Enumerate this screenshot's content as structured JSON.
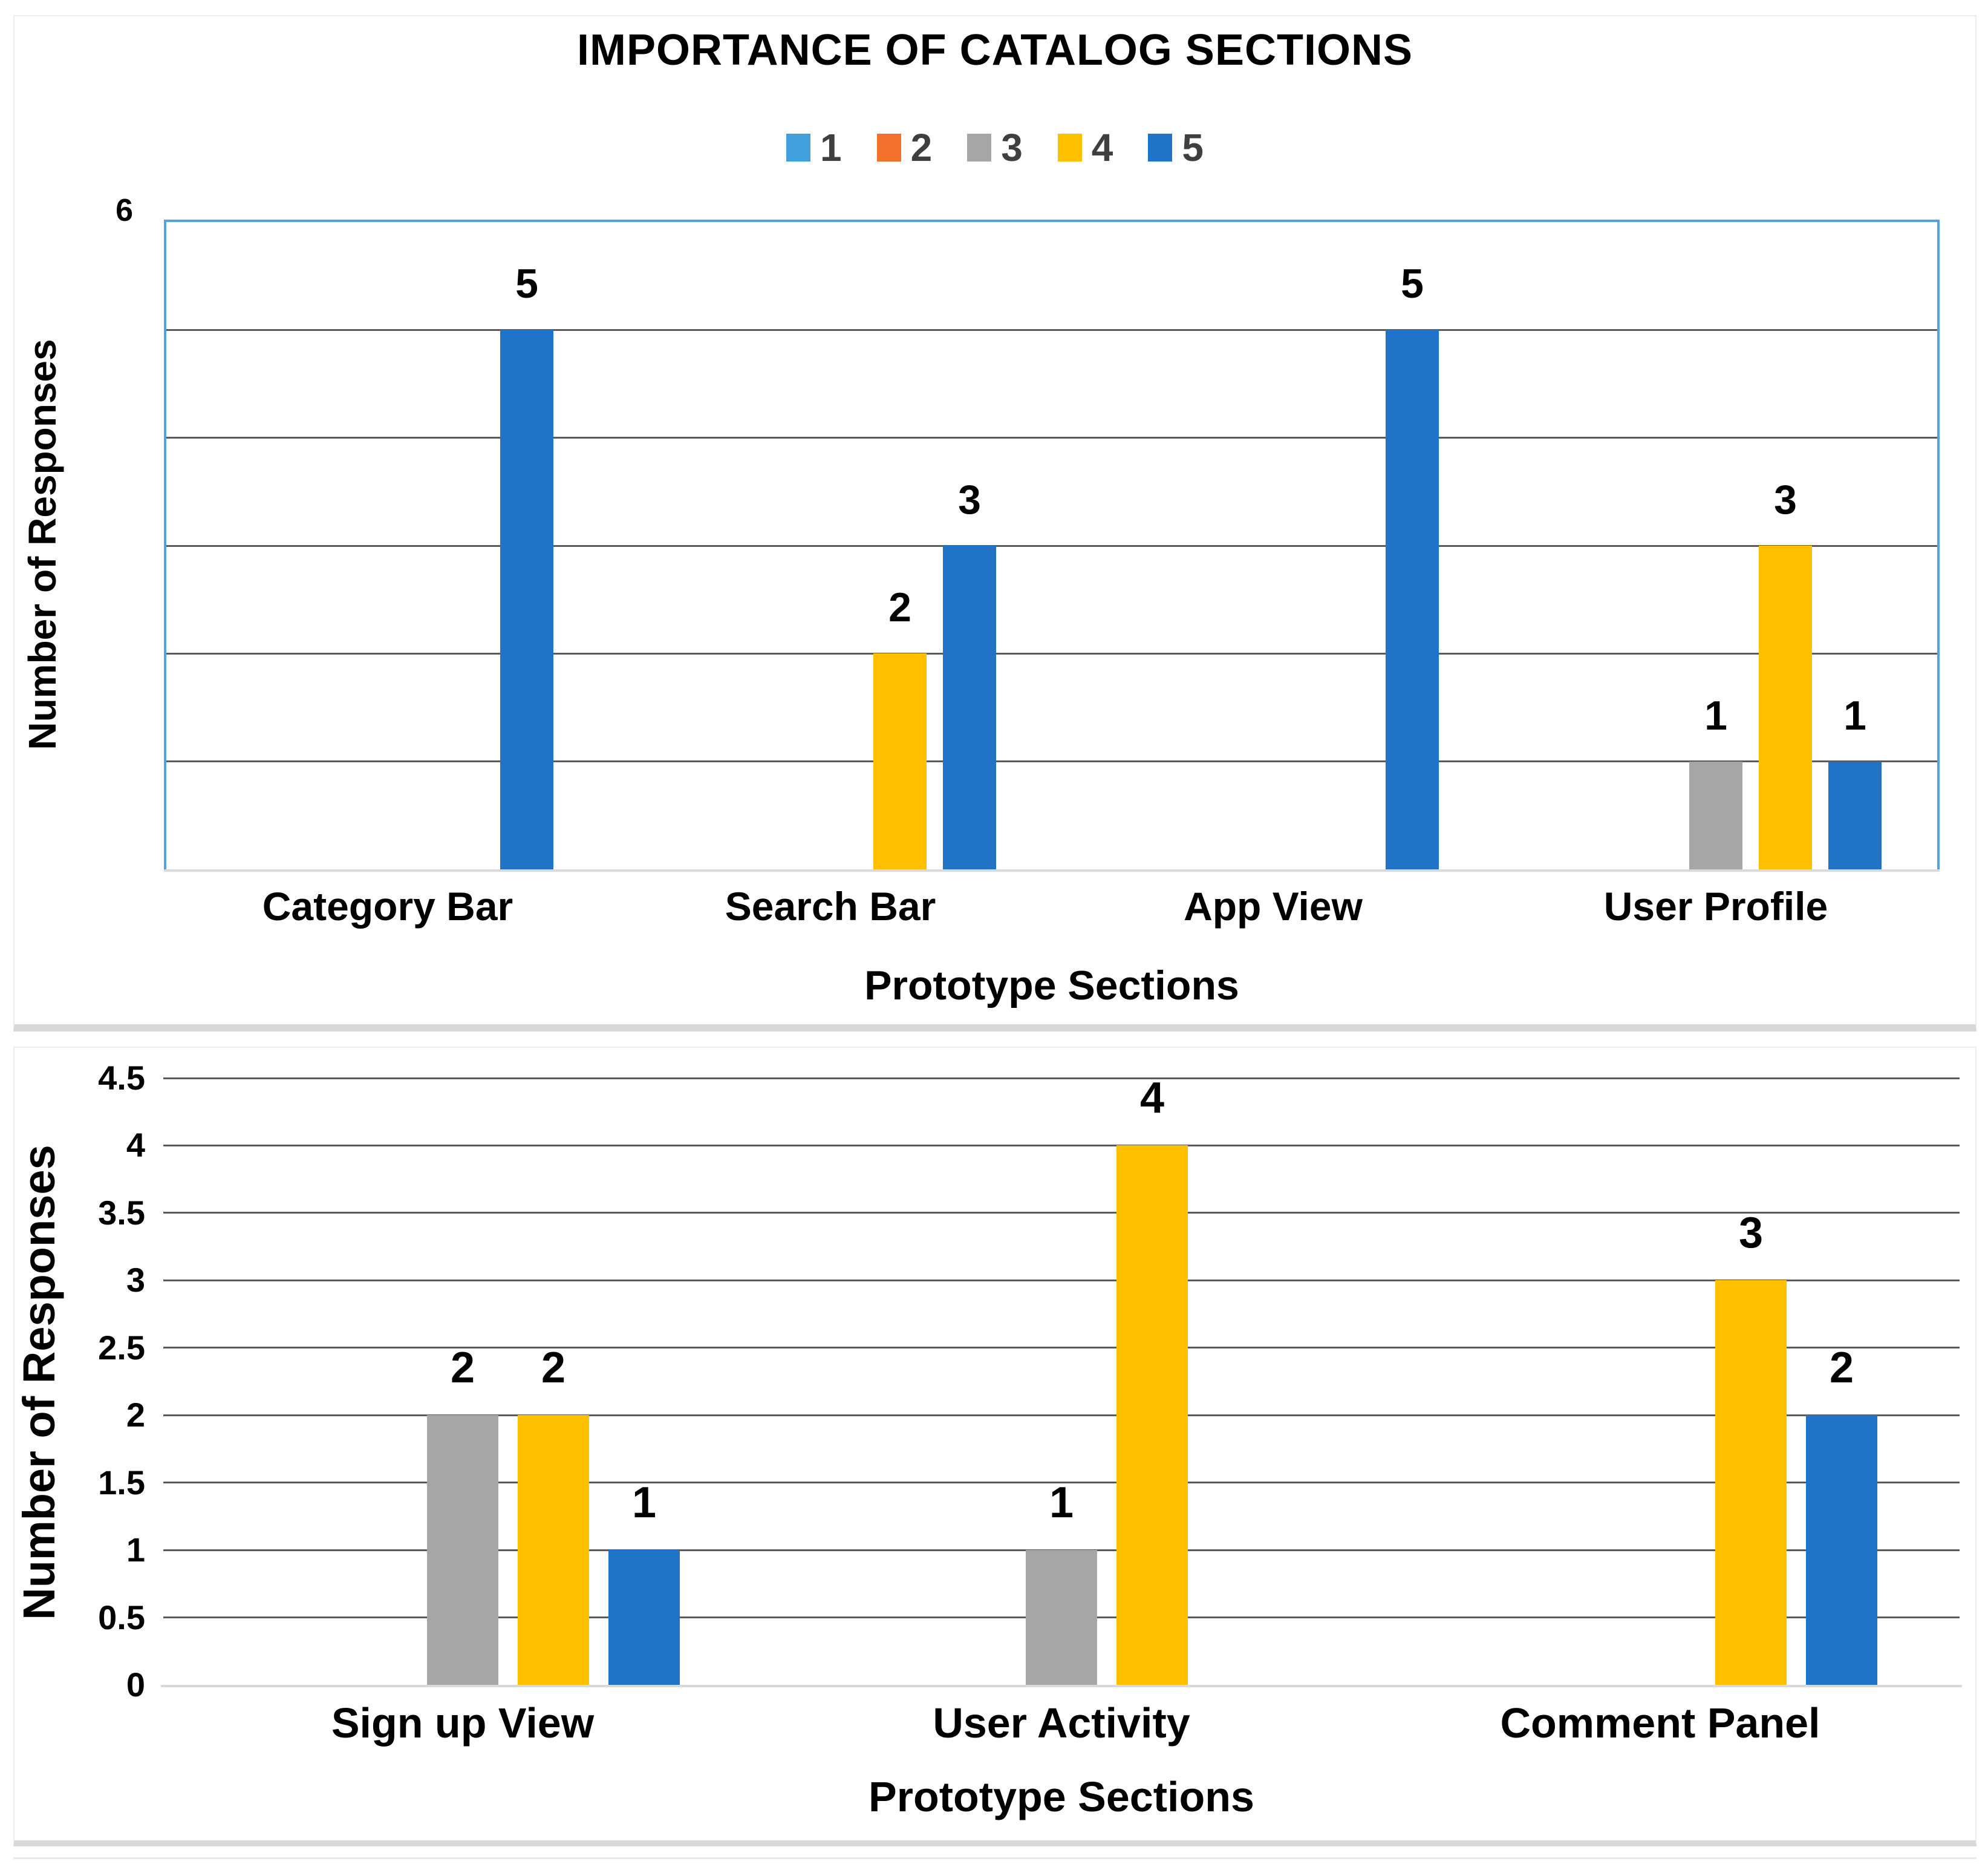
{
  "figure_background": "#ffffff",
  "grid_color": "#5A5A5A",
  "axis_zero_line_color": "#D9D9D9",
  "top_plot_border_color": "#55A3DB",
  "chart_data": [
    {
      "type": "bar",
      "title": "IMPORTANCE OF CATALOG SECTIONS",
      "xlabel": "Prototype Sections",
      "ylabel": "Number of Responses",
      "ylim": [
        0,
        6
      ],
      "grid_step": 1,
      "grid": true,
      "legend_position": "top-center",
      "y_axis_labels": [
        "6"
      ],
      "legend": [
        {
          "label": "1",
          "color": "#3FA0DC"
        },
        {
          "label": "2",
          "color": "#F3702B"
        },
        {
          "label": "3",
          "color": "#A6A6A6"
        },
        {
          "label": "4",
          "color": "#FFC000"
        },
        {
          "label": "5",
          "color": "#2173C7"
        }
      ],
      "categories": [
        "Category Bar",
        "Search Bar",
        "App View",
        "User Profile"
      ],
      "series": [
        {
          "name": "1",
          "slot": 1,
          "color": "#3FA0DC",
          "values": [
            0,
            0,
            0,
            0
          ]
        },
        {
          "name": "2",
          "slot": 2,
          "color": "#F3702B",
          "values": [
            0,
            0,
            0,
            0
          ]
        },
        {
          "name": "3",
          "slot": 3,
          "color": "#A6A6A6",
          "values": [
            0,
            0,
            0,
            1
          ]
        },
        {
          "name": "4",
          "slot": 4,
          "color": "#FFC000",
          "values": [
            0,
            2,
            0,
            3
          ]
        },
        {
          "name": "5",
          "slot": 5,
          "color": "#2173C7",
          "values": [
            5,
            3,
            5,
            1
          ]
        }
      ],
      "data_labels_shown": true
    },
    {
      "type": "bar",
      "title": "",
      "xlabel": "Prototype Sections",
      "ylabel": "Number of Responses",
      "ylim": [
        0,
        4.5
      ],
      "grid_step": 0.5,
      "grid": true,
      "y_axis_labels": [
        "0",
        "0.5",
        "1",
        "1.5",
        "2",
        "2.5",
        "3",
        "3.5",
        "4",
        "4.5"
      ],
      "categories": [
        "Sign up View",
        "User Activity",
        "Comment Panel"
      ],
      "series": [
        {
          "name": "1",
          "slot": 1,
          "color": "#3FA0DC",
          "values": [
            0,
            0,
            0
          ]
        },
        {
          "name": "2",
          "slot": 2,
          "color": "#F3702B",
          "values": [
            0,
            0,
            0
          ]
        },
        {
          "name": "3",
          "slot": 3,
          "color": "#A6A6A6",
          "values": [
            2,
            1,
            0
          ]
        },
        {
          "name": "4",
          "slot": 4,
          "color": "#FFC000",
          "values": [
            2,
            4,
            3
          ]
        },
        {
          "name": "5",
          "slot": 5,
          "color": "#2173C7",
          "values": [
            1,
            0,
            2
          ]
        }
      ],
      "data_labels_shown": true
    }
  ]
}
